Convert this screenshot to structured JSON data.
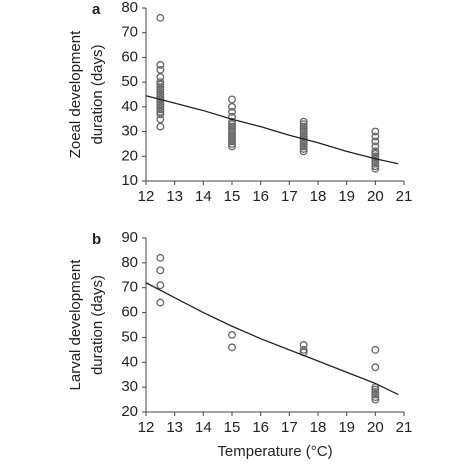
{
  "chart_data": [
    {
      "type": "scatter",
      "label": "a",
      "ylabel": [
        "Zoeal development",
        "duration (days)"
      ],
      "xlim": [
        12,
        21
      ],
      "xticks": [
        12,
        13,
        14,
        15,
        16,
        17,
        18,
        19,
        20,
        21
      ],
      "ylim": [
        10,
        80
      ],
      "yticks": [
        10,
        20,
        30,
        40,
        50,
        60,
        70,
        80
      ],
      "series": [
        {
          "type": "scatter",
          "color": "#666666",
          "x": [
            12.5,
            12.5,
            12.5,
            12.5,
            12.5,
            12.5,
            12.5,
            12.5,
            12.5,
            12.5,
            12.5,
            12.5,
            12.5,
            12.5,
            12.5,
            12.5,
            12.5,
            12.5,
            12.5,
            12.5,
            15,
            15,
            15,
            15,
            15,
            15,
            15,
            15,
            15,
            15,
            15,
            15,
            15,
            15,
            15,
            17.5,
            17.5,
            17.5,
            17.5,
            17.5,
            17.5,
            17.5,
            17.5,
            17.5,
            17.5,
            17.5,
            17.5,
            17.5,
            20,
            20,
            20,
            20,
            20,
            20,
            20,
            20,
            20,
            20,
            20,
            20
          ],
          "values": [
            76,
            57,
            55,
            52,
            50,
            49,
            48,
            47,
            46,
            45,
            44,
            43,
            42,
            41,
            40,
            39,
            38,
            37,
            35,
            32,
            43,
            40,
            38,
            36,
            34,
            33,
            32,
            31,
            30,
            29,
            28,
            27,
            26,
            25,
            24,
            34,
            33,
            32,
            31,
            30,
            29,
            28,
            27,
            26,
            25,
            24,
            23,
            22,
            30,
            28,
            26,
            24,
            22,
            21,
            20,
            19,
            18,
            17,
            16,
            15
          ]
        },
        {
          "type": "line",
          "color": "#222222",
          "x": [
            12,
            13,
            14,
            15,
            16,
            17,
            18,
            19,
            20,
            20.8
          ],
          "values": [
            44.5,
            41.5,
            38.5,
            35,
            32,
            28.5,
            25.5,
            22,
            19,
            17
          ]
        }
      ]
    },
    {
      "type": "scatter",
      "label": "b",
      "ylabel": [
        "Larval development",
        "duration (days)"
      ],
      "xlabel": "Temperature (°C)",
      "xlim": [
        12,
        21
      ],
      "xticks": [
        12,
        13,
        14,
        15,
        16,
        17,
        18,
        19,
        20,
        21
      ],
      "ylim": [
        20,
        90
      ],
      "yticks": [
        20,
        30,
        40,
        50,
        60,
        70,
        80,
        90
      ],
      "series": [
        {
          "type": "scatter",
          "color": "#666666",
          "x": [
            12.5,
            12.5,
            12.5,
            12.5,
            15,
            15,
            17.5,
            17.5,
            17.5,
            20,
            20,
            20,
            20,
            20,
            20,
            20,
            20
          ],
          "values": [
            82,
            77,
            71,
            64,
            51,
            46,
            47,
            45,
            44,
            45,
            38,
            30,
            29,
            28,
            27,
            26,
            25
          ]
        },
        {
          "type": "line",
          "color": "#222222",
          "x": [
            12,
            13,
            14,
            15,
            16,
            17,
            18,
            19,
            20,
            20.8
          ],
          "values": [
            72,
            66,
            60,
            54.5,
            49.5,
            45,
            40.5,
            36,
            31.5,
            27
          ]
        }
      ]
    }
  ]
}
